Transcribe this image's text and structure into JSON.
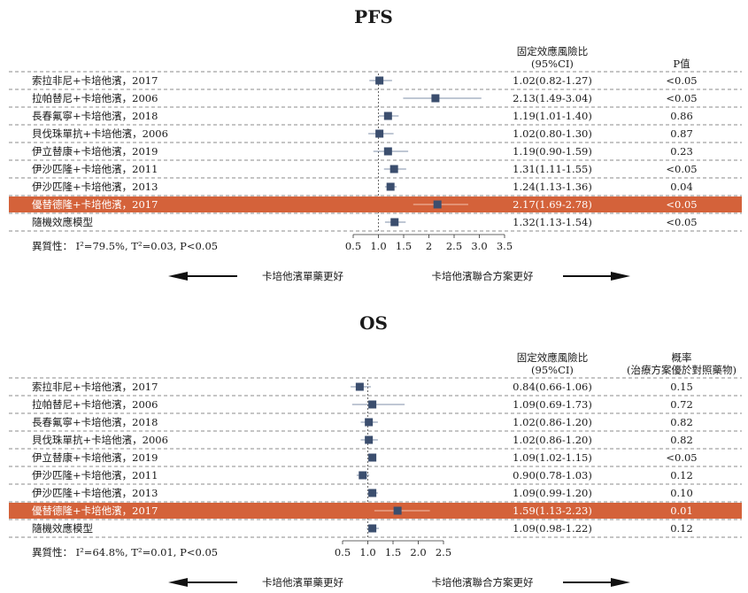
{
  "chart_data": [
    {
      "type": "forest",
      "title": "PFS",
      "col_estimate_header": [
        "固定效應風險比",
        "(95%CI)"
      ],
      "col_p_header": [
        "P值"
      ],
      "rows": [
        {
          "label": "索拉非尼+卡培他濱，2017",
          "hr": 1.02,
          "lo": 0.82,
          "hi": 1.27,
          "ci_text": "1.02(0.82-1.27)",
          "p_text": "<0.05",
          "highlight": false
        },
        {
          "label": "拉帕替尼+卡培他濱，2006",
          "hr": 2.13,
          "lo": 1.49,
          "hi": 3.04,
          "ci_text": "2.13(1.49-3.04)",
          "p_text": "<0.05",
          "highlight": false
        },
        {
          "label": "長春氟寧+卡培他濱，2018",
          "hr": 1.19,
          "lo": 1.01,
          "hi": 1.4,
          "ci_text": "1.19(1.01-1.40)",
          "p_text": "0.86",
          "highlight": false
        },
        {
          "label": "貝伐珠單抗+卡培他濱，2006",
          "hr": 1.02,
          "lo": 0.8,
          "hi": 1.3,
          "ci_text": "1.02(0.80-1.30)",
          "p_text": "0.87",
          "highlight": false
        },
        {
          "label": "伊立替康+卡培他濱，2019",
          "hr": 1.19,
          "lo": 0.9,
          "hi": 1.59,
          "ci_text": "1.19(0.90-1.59)",
          "p_text": "0.23",
          "highlight": false
        },
        {
          "label": "伊沙匹隆+卡培他濱，2011",
          "hr": 1.31,
          "lo": 1.11,
          "hi": 1.55,
          "ci_text": "1.31(1.11-1.55)",
          "p_text": "<0.05",
          "highlight": false
        },
        {
          "label": "伊沙匹隆+卡培他濱，2013",
          "hr": 1.24,
          "lo": 1.13,
          "hi": 1.36,
          "ci_text": "1.24(1.13-1.36)",
          "p_text": "0.04",
          "highlight": false
        },
        {
          "label": "優替德隆+卡培他濱，2017",
          "hr": 2.17,
          "lo": 1.69,
          "hi": 2.78,
          "ci_text": "2.17(1.69-2.78)",
          "p_text": "<0.05",
          "highlight": true
        },
        {
          "label": "隨機效應模型",
          "hr": 1.32,
          "lo": 1.13,
          "hi": 1.54,
          "ci_text": "1.32(1.13-1.54)",
          "p_text": "<0.05",
          "highlight": false
        }
      ],
      "heterogeneity_text": "異質性： I²=79.5%, T²=0.03, P<0.05",
      "x_ticks": [
        0.5,
        1.0,
        1.5,
        2.0,
        2.5,
        3.0,
        3.5
      ],
      "x_tick_labels": [
        "0.5",
        "1.0",
        "1.5",
        "2",
        "2.5",
        "3.0",
        "3.5"
      ],
      "xlim": [
        0.5,
        3.5
      ],
      "reference_line": 1.0,
      "left_direction_label": "卡培他濱單藥更好",
      "right_direction_label": "卡培他濱聯合方案更好"
    },
    {
      "type": "forest",
      "title": "OS",
      "col_estimate_header": [
        "固定效應風險比",
        "(95%CI)"
      ],
      "col_p_header": [
        "概率",
        "(治療方案優於對照藥物)"
      ],
      "rows": [
        {
          "label": "索拉非尼+卡培他濱，2017",
          "hr": 0.84,
          "lo": 0.66,
          "hi": 1.06,
          "ci_text": "0.84(0.66-1.06)",
          "p_text": "0.15",
          "highlight": false
        },
        {
          "label": "拉帕替尼+卡培他濱，2006",
          "hr": 1.09,
          "lo": 0.69,
          "hi": 1.73,
          "ci_text": "1.09(0.69-1.73)",
          "p_text": "0.72",
          "highlight": false
        },
        {
          "label": "長春氟寧+卡培他濱，2018",
          "hr": 1.02,
          "lo": 0.86,
          "hi": 1.2,
          "ci_text": "1.02(0.86-1.20)",
          "p_text": "0.82",
          "highlight": false
        },
        {
          "label": "貝伐珠單抗+卡培他濱，2006",
          "hr": 1.02,
          "lo": 0.86,
          "hi": 1.2,
          "ci_text": "1.02(0.86-1.20)",
          "p_text": "0.82",
          "highlight": false
        },
        {
          "label": "伊立替康+卡培他濱，2019",
          "hr": 1.09,
          "lo": 1.02,
          "hi": 1.15,
          "ci_text": "1.09(1.02-1.15)",
          "p_text": "<0.05",
          "highlight": false
        },
        {
          "label": "伊沙匹隆+卡培他濱，2011",
          "hr": 0.9,
          "lo": 0.78,
          "hi": 1.03,
          "ci_text": "0.90(0.78-1.03)",
          "p_text": "0.12",
          "highlight": false
        },
        {
          "label": "伊沙匹隆+卡培他濱，2013",
          "hr": 1.09,
          "lo": 0.99,
          "hi": 1.2,
          "ci_text": "1.09(0.99-1.20)",
          "p_text": "0.10",
          "highlight": false
        },
        {
          "label": "優替德隆+卡培他濱，2017",
          "hr": 1.59,
          "lo": 1.13,
          "hi": 2.23,
          "ci_text": "1.59(1.13-2.23)",
          "p_text": "0.01",
          "highlight": true
        },
        {
          "label": "隨機效應模型",
          "hr": 1.09,
          "lo": 0.98,
          "hi": 1.22,
          "ci_text": "1.09(0.98-1.22)",
          "p_text": "0.12",
          "highlight": false
        }
      ],
      "heterogeneity_text": "異質性： I²=64.8%, T²=0.01, P<0.05",
      "x_ticks": [
        0.5,
        1.0,
        1.5,
        2.0,
        2.5
      ],
      "x_tick_labels": [
        "0.5",
        "1.0",
        "1.5",
        "2.0",
        "2.5"
      ],
      "xlim": [
        0.5,
        2.5
      ],
      "reference_line": 1.0,
      "left_direction_label": "卡培他濱單藥更好",
      "right_direction_label": "卡培他濱聯合方案更好"
    }
  ],
  "colors": {
    "marker": "#3b4e6e",
    "highlight_row": "#d4623a",
    "ci_line": "#3b4e6e",
    "dashes": "#666666",
    "text": "#1a1a1a"
  }
}
